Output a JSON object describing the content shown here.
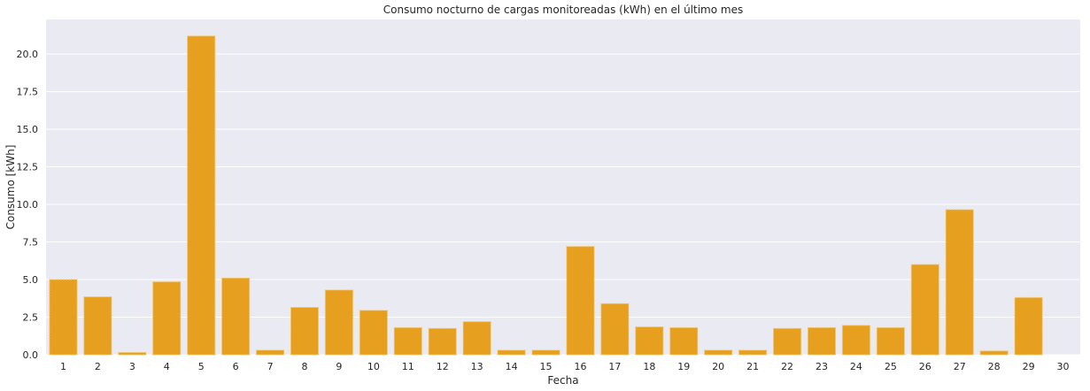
{
  "chart_data": {
    "type": "bar",
    "title": "Consumo nocturno de cargas monitoreadas (kWh) en el último mes",
    "xlabel": "Fecha",
    "ylabel": "Consumo [kWh]",
    "categories": [
      "1",
      "2",
      "3",
      "4",
      "5",
      "6",
      "7",
      "8",
      "9",
      "10",
      "11",
      "12",
      "13",
      "14",
      "15",
      "16",
      "17",
      "18",
      "19",
      "20",
      "21",
      "22",
      "23",
      "24",
      "25",
      "26",
      "27",
      "28",
      "29",
      "30"
    ],
    "values": [
      5.0,
      3.85,
      0.15,
      4.85,
      21.2,
      5.1,
      0.3,
      3.15,
      4.3,
      2.95,
      1.8,
      1.75,
      2.2,
      0.3,
      0.3,
      7.2,
      3.4,
      1.85,
      1.8,
      0.3,
      0.3,
      1.75,
      1.8,
      1.95,
      1.8,
      6.0,
      9.65,
      0.25,
      3.8,
      0.0
    ],
    "yticks": [
      "0.0",
      "2.5",
      "5.0",
      "7.5",
      "10.0",
      "12.5",
      "15.0",
      "17.5",
      "20.0"
    ],
    "ylim": [
      0,
      22.3
    ],
    "grid": true,
    "colors": {
      "bar": "#e69f1f",
      "bar_edge": "#f5c76a",
      "plot_bg": "#eaeaf2",
      "grid": "#ffffff"
    }
  }
}
